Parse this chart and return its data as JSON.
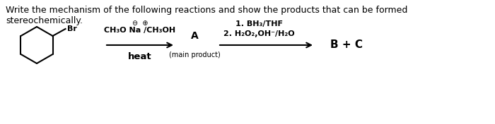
{
  "title_line1": "Write the mechanism of the following reactions and show the products that can be formed",
  "title_line2": "stereochemically.",
  "background_color": "#ffffff",
  "text_color": "#000000",
  "reagent1_charges": "⊖  ⊕",
  "reagent1_line2": "CH₃O Na /CH₃OH",
  "reagent1_line3": "heat",
  "product_a": "A",
  "product_a_sub": "(main product)",
  "reagent2_line1": "1. BH₃/THF",
  "reagent2_line2": "2. H₂O₂,OH⁻/H₂O",
  "product_bc": "B + C"
}
